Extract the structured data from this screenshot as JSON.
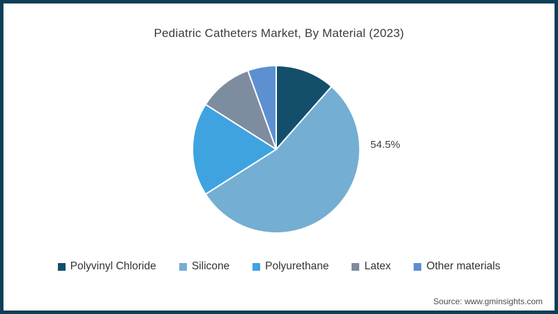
{
  "page": {
    "source": "Source: www.gminsights.com",
    "border_color": "#0d3f56",
    "background": "#ffffff"
  },
  "chart_data": {
    "type": "pie",
    "title": "Pediatric Catheters Market, By Material (2023)",
    "categories": [
      "Polyvinyl Chloride",
      "Silicone",
      "Polyurethane",
      "Latex",
      "Other materials"
    ],
    "values": [
      11.5,
      54.5,
      18.0,
      10.5,
      5.5
    ],
    "unit": "%",
    "colors": [
      "#134f6b",
      "#74aed3",
      "#3fa3e0",
      "#7d8c9f",
      "#5d90d1"
    ],
    "start_angle_deg": 0,
    "direction": "clockwise",
    "slice_border_color": "#ffffff",
    "legend_position": "bottom",
    "data_label": {
      "text": "54.5%",
      "series": "Silicone",
      "color": "#404040"
    }
  }
}
